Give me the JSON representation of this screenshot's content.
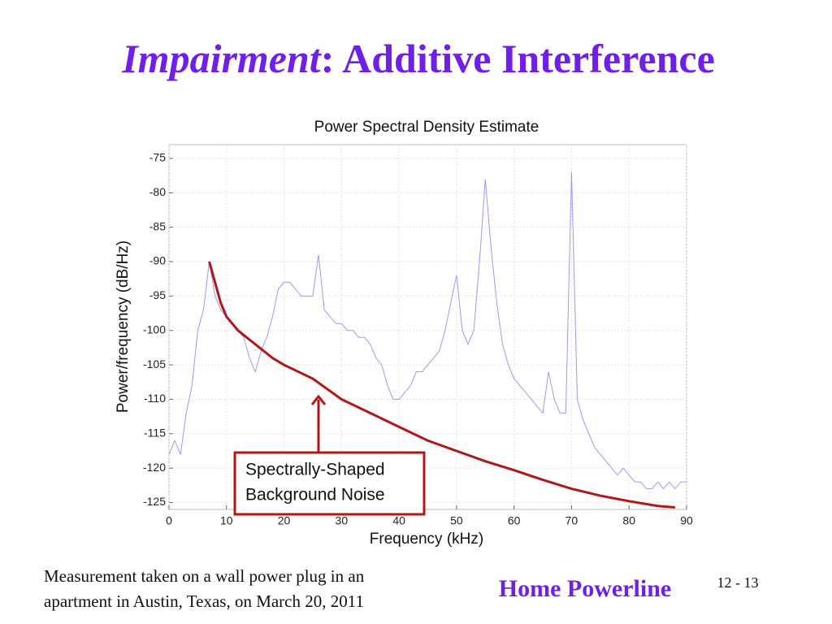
{
  "slide_title": {
    "emphasis": "Impairment",
    "rest": ": Additive Interference"
  },
  "footnote": [
    "Measurement taken on a wall power plug in an",
    "apartment in Austin, Texas, on March 20, 2011"
  ],
  "footer_title": "Home Powerline",
  "page_number": "12 - 13",
  "chart_data": {
    "type": "line",
    "title": "Power Spectral Density Estimate",
    "x_label": "Frequency (kHz)",
    "y_label": "Power/frequency (dB/Hz)",
    "annotation": [
      "Spectrally-Shaped",
      "Background Noise"
    ],
    "xlim": [
      0,
      90
    ],
    "ylim": [
      -126,
      -73
    ],
    "xticks": [
      0,
      10,
      20,
      30,
      40,
      50,
      60,
      70,
      80,
      90
    ],
    "yticks": [
      -125,
      -120,
      -115,
      -110,
      -105,
      -100,
      -95,
      -90,
      -85,
      -80,
      -75
    ],
    "grid": true,
    "series": [
      {
        "color": "#9a9af0",
        "x": [
          0,
          1,
          2,
          3,
          4,
          5,
          6,
          7,
          8,
          9,
          10,
          11,
          12,
          13,
          14,
          15,
          16,
          17,
          18,
          19,
          20,
          21,
          22,
          23,
          24,
          25,
          26,
          27,
          28,
          29,
          30,
          31,
          32,
          33,
          34,
          35,
          36,
          37,
          38,
          39,
          40,
          41,
          42,
          43,
          44,
          45,
          46,
          47,
          48,
          49,
          50,
          51,
          52,
          53,
          54,
          55,
          56,
          57,
          58,
          59,
          60,
          61,
          62,
          63,
          64,
          65,
          66,
          67,
          68,
          69,
          70,
          71,
          72,
          73,
          74,
          75,
          76,
          77,
          78,
          79,
          80,
          81,
          82,
          83,
          84,
          85,
          86,
          87,
          88,
          89,
          90
        ],
        "values": [
          -118,
          -116,
          -118,
          -112,
          -108,
          -100,
          -97,
          -90,
          -95,
          -97,
          -98,
          -99,
          -100,
          -101,
          -104,
          -106,
          -103,
          -101,
          -98,
          -94,
          -93,
          -93,
          -94,
          -95,
          -95,
          -95,
          -89,
          -97,
          -98,
          -99,
          -99,
          -100,
          -100,
          -101,
          -101,
          -102,
          -104,
          -105,
          -108,
          -110,
          -110,
          -109,
          -108,
          -106,
          -106,
          -105,
          -104,
          -103,
          -100,
          -96,
          -92,
          -100,
          -102,
          -100,
          -90,
          -78,
          -88,
          -96,
          -102,
          -105,
          -107,
          -108,
          -109,
          -110,
          -111,
          -112,
          -106,
          -110,
          -112,
          -112,
          -77,
          -110,
          -113,
          -115,
          -117,
          -118,
          -119,
          -120,
          -121,
          -120,
          -121,
          -122,
          -122,
          -123,
          -123,
          -122,
          -123,
          -122,
          -123,
          -122,
          -122
        ]
      },
      {
        "color": "#b01818",
        "x": [
          7,
          8,
          9,
          10,
          12,
          15,
          18,
          20,
          25,
          30,
          35,
          40,
          45,
          50,
          55,
          60,
          65,
          70,
          75,
          80,
          85,
          88
        ],
        "values": [
          -90,
          -93,
          -96,
          -98,
          -100,
          -102,
          -104,
          -105,
          -107,
          -110,
          -112,
          -114,
          -116,
          -117.5,
          -119,
          -120.3,
          -121.7,
          -123,
          -124,
          -124.8,
          -125.5,
          -125.7
        ]
      }
    ]
  }
}
